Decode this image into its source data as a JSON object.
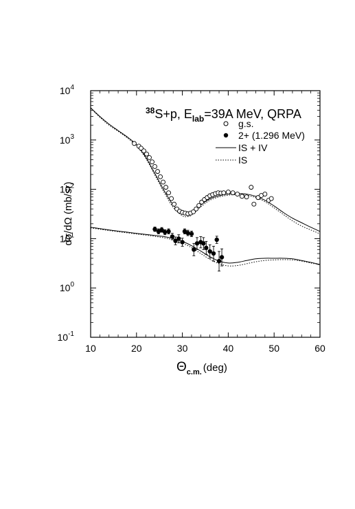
{
  "chart_data": {
    "type": "scatter",
    "title_sup": "38",
    "title_main": "S+p, E",
    "title_sub": "lab",
    "title_rest": "=39A MeV, QRPA",
    "xlabel_symbol": "Θ",
    "xlabel_sub": "c.m.",
    "xlabel_unit": "(deg)",
    "ylabel": "dσ/dΩ  (mb/sr)",
    "xlim": [
      10,
      60
    ],
    "ylim_log10": [
      -1,
      4
    ],
    "log_y": true,
    "grid": false,
    "legend_position": "top-right",
    "x_ticks": [
      "10",
      "20",
      "30",
      "40",
      "50",
      "60"
    ],
    "y_ticks": [
      {
        "base": "10",
        "exp": "-1"
      },
      {
        "base": "10",
        "exp": "0"
      },
      {
        "base": "10",
        "exp": "1"
      },
      {
        "base": "10",
        "exp": "2"
      },
      {
        "base": "10",
        "exp": "3"
      },
      {
        "base": "10",
        "exp": "4"
      }
    ],
    "legend": [
      {
        "label": "g.s.",
        "marker": "open-circle"
      },
      {
        "label": "2+ (1.296 MeV)",
        "marker": "filled-circle"
      },
      {
        "label": "IS + IV",
        "line": "solid"
      },
      {
        "label": "IS",
        "line": "dotted"
      }
    ],
    "gs_data": [
      [
        19.5,
        850
      ],
      [
        20.5,
        750
      ],
      [
        21.0,
        680
      ],
      [
        21.6,
        600
      ],
      [
        22.2,
        520
      ],
      [
        22.8,
        440
      ],
      [
        23.4,
        360
      ],
      [
        24.0,
        290
      ],
      [
        24.6,
        230
      ],
      [
        25.2,
        180
      ],
      [
        25.8,
        140
      ],
      [
        26.4,
        110
      ],
      [
        27.0,
        85
      ],
      [
        27.6,
        65
      ],
      [
        28.2,
        50
      ],
      [
        28.8,
        40
      ],
      [
        29.4,
        36
      ],
      [
        30.0,
        34
      ],
      [
        30.6,
        33
      ],
      [
        31.2,
        32
      ],
      [
        31.8,
        33
      ],
      [
        32.4,
        35
      ],
      [
        33.0,
        40
      ],
      [
        33.6,
        47
      ],
      [
        34.2,
        55
      ],
      [
        34.8,
        62
      ],
      [
        35.4,
        68
      ],
      [
        36.0,
        74
      ],
      [
        36.6,
        78
      ],
      [
        37.2,
        82
      ],
      [
        37.8,
        85
      ],
      [
        38.4,
        84
      ],
      [
        39.0,
        85
      ],
      [
        40.0,
        88
      ],
      [
        41.0,
        85
      ],
      [
        42.0,
        80
      ],
      [
        43.0,
        72
      ],
      [
        44.0,
        70
      ],
      [
        45.0,
        110
      ],
      [
        45.6,
        50
      ],
      [
        46.5,
        68
      ],
      [
        47.2,
        75
      ],
      [
        48.0,
        80
      ],
      [
        48.8,
        60
      ],
      [
        49.4,
        65
      ]
    ],
    "ex_data": [
      {
        "x": 24.0,
        "y": 15.5,
        "lo": 14.0,
        "hi": 17.2
      },
      {
        "x": 24.8,
        "y": 14.0,
        "lo": 12.5,
        "hi": 15.8
      },
      {
        "x": 25.5,
        "y": 15.0,
        "lo": 13.5,
        "hi": 16.8
      },
      {
        "x": 26.2,
        "y": 13.5,
        "lo": 12.0,
        "hi": 15.2
      },
      {
        "x": 27.0,
        "y": 14.0,
        "lo": 12.5,
        "hi": 15.8
      },
      {
        "x": 27.8,
        "y": 11.0,
        "lo": 9.5,
        "hi": 12.8
      },
      {
        "x": 28.5,
        "y": 9.0,
        "lo": 7.5,
        "hi": 10.8
      },
      {
        "x": 29.2,
        "y": 10.0,
        "lo": 8.2,
        "hi": 12.0
      },
      {
        "x": 30.0,
        "y": 8.5,
        "lo": 7.0,
        "hi": 10.2
      },
      {
        "x": 30.5,
        "y": 14.0,
        "lo": 12.5,
        "hi": 15.8
      },
      {
        "x": 31.2,
        "y": 13.0,
        "lo": 11.5,
        "hi": 14.8
      },
      {
        "x": 32.0,
        "y": 12.5,
        "lo": 11.0,
        "hi": 14.2
      },
      {
        "x": 32.5,
        "y": 6.0,
        "lo": 4.5,
        "hi": 8.0
      },
      {
        "x": 33.2,
        "y": 8.0,
        "lo": 6.0,
        "hi": 10.5
      },
      {
        "x": 34.0,
        "y": 8.5,
        "lo": 6.5,
        "hi": 11.0
      },
      {
        "x": 34.6,
        "y": 8.0,
        "lo": 6.0,
        "hi": 10.5
      },
      {
        "x": 35.2,
        "y": 6.5,
        "lo": 4.8,
        "hi": 8.8
      },
      {
        "x": 36.0,
        "y": 5.5,
        "lo": 4.0,
        "hi": 7.5
      },
      {
        "x": 36.8,
        "y": 5.0,
        "lo": 3.5,
        "hi": 7.0
      },
      {
        "x": 37.5,
        "y": 9.5,
        "lo": 8.0,
        "hi": 11.2
      },
      {
        "x": 38.0,
        "y": 3.5,
        "lo": 2.2,
        "hi": 5.5
      },
      {
        "x": 38.6,
        "y": 4.2,
        "lo": 2.8,
        "hi": 6.2
      }
    ],
    "curves": {
      "gs_isiv": [
        [
          10,
          4500
        ],
        [
          12,
          3000
        ],
        [
          14,
          2100
        ],
        [
          16,
          1550
        ],
        [
          18,
          1150
        ],
        [
          20,
          800
        ],
        [
          22,
          450
        ],
        [
          24,
          210
        ],
        [
          26,
          95
        ],
        [
          28,
          48
        ],
        [
          30,
          32
        ],
        [
          31,
          31
        ],
        [
          32,
          33
        ],
        [
          34,
          48
        ],
        [
          36,
          64
        ],
        [
          38,
          74
        ],
        [
          40,
          80
        ],
        [
          42,
          82
        ],
        [
          44,
          80
        ],
        [
          46,
          72
        ],
        [
          48,
          60
        ],
        [
          50,
          46
        ],
        [
          52,
          34
        ],
        [
          54,
          26
        ],
        [
          56,
          21
        ],
        [
          58,
          17
        ],
        [
          60,
          14
        ]
      ],
      "gs_is": [
        [
          10,
          4400
        ],
        [
          12,
          2900
        ],
        [
          14,
          2000
        ],
        [
          16,
          1500
        ],
        [
          18,
          1100
        ],
        [
          20,
          760
        ],
        [
          22,
          430
        ],
        [
          24,
          195
        ],
        [
          26,
          87
        ],
        [
          28,
          43
        ],
        [
          30,
          29
        ],
        [
          31,
          28
        ],
        [
          32,
          30
        ],
        [
          34,
          44
        ],
        [
          36,
          60
        ],
        [
          38,
          70
        ],
        [
          40,
          76
        ],
        [
          42,
          78
        ],
        [
          44,
          76
        ],
        [
          46,
          68
        ],
        [
          48,
          56
        ],
        [
          50,
          42
        ],
        [
          52,
          31
        ],
        [
          54,
          23
        ],
        [
          56,
          18
        ],
        [
          58,
          15
        ],
        [
          60,
          12.5
        ]
      ],
      "ex_isiv": [
        [
          10,
          17
        ],
        [
          12,
          16
        ],
        [
          14,
          15
        ],
        [
          16,
          14.2
        ],
        [
          18,
          13.5
        ],
        [
          20,
          12.8
        ],
        [
          22,
          12.2
        ],
        [
          24,
          11.6
        ],
        [
          26,
          11.0
        ],
        [
          28,
          10.0
        ],
        [
          30,
          8.8
        ],
        [
          32,
          7.2
        ],
        [
          34,
          5.6
        ],
        [
          36,
          4.3
        ],
        [
          38,
          3.5
        ],
        [
          40,
          3.2
        ],
        [
          42,
          3.3
        ],
        [
          44,
          3.6
        ],
        [
          46,
          3.9
        ],
        [
          48,
          4.0
        ],
        [
          50,
          4.0
        ],
        [
          52,
          4.0
        ],
        [
          54,
          3.9
        ],
        [
          56,
          3.6
        ],
        [
          58,
          3.3
        ],
        [
          60,
          3.0
        ]
      ],
      "ex_is": [
        [
          10,
          16.5
        ],
        [
          12,
          15.5
        ],
        [
          14,
          14.6
        ],
        [
          16,
          13.8
        ],
        [
          18,
          13.1
        ],
        [
          20,
          12.4
        ],
        [
          22,
          11.8
        ],
        [
          24,
          11.1
        ],
        [
          26,
          10.4
        ],
        [
          28,
          9.4
        ],
        [
          30,
          8.1
        ],
        [
          32,
          6.6
        ],
        [
          34,
          5.0
        ],
        [
          36,
          3.8
        ],
        [
          38,
          3.1
        ],
        [
          40,
          2.8
        ],
        [
          42,
          2.85
        ],
        [
          44,
          3.1
        ],
        [
          46,
          3.4
        ],
        [
          48,
          3.6
        ],
        [
          50,
          3.7
        ],
        [
          52,
          3.75
        ],
        [
          54,
          3.7
        ],
        [
          56,
          3.5
        ],
        [
          58,
          3.2
        ],
        [
          60,
          2.95
        ]
      ]
    }
  }
}
